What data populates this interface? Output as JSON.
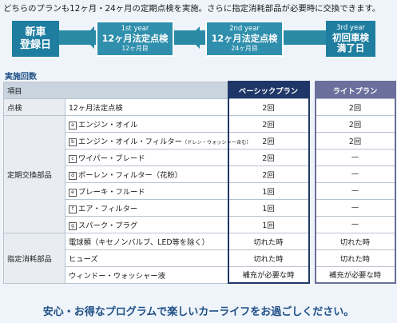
{
  "intro": "どちらのプランも12ヶ月・24ヶ月の定期点検を実施。さらに指定消耗部品が必要時に交換できます。",
  "timeline": {
    "start": {
      "line1": "新車",
      "line2": "登録日"
    },
    "mid1": {
      "year": "1st year",
      "title": "12ヶ月法定点検",
      "sub": "12ヶ月目"
    },
    "mid2": {
      "year": "2nd year",
      "title": "12ヶ月法定点検",
      "sub": "24ヶ月目"
    },
    "end": {
      "year": "3rd year",
      "line1": "初回車検",
      "line2": "満了日"
    }
  },
  "section_title": "実施回数",
  "table": {
    "headers": {
      "item": "項目",
      "basic": "ベーシックプラン",
      "light": "ライトプラン"
    },
    "inspection": {
      "category": "点検",
      "item": "12ヶ月法定点検",
      "basic": "2回",
      "light": "2回"
    },
    "replacement": {
      "category": "定期交換部品",
      "rows": [
        {
          "mark": "a",
          "item": "エンジン・オイル",
          "note": "",
          "basic": "2回",
          "light": "2回"
        },
        {
          "mark": "b",
          "item": "エンジン・オイル・フィルター",
          "note": "（ドレン・ウォッシャー含む）",
          "basic": "2回",
          "light": "2回"
        },
        {
          "mark": "c",
          "item": "ワイパー・ブレード",
          "note": "",
          "basic": "2回",
          "light": "—"
        },
        {
          "mark": "d",
          "item": "ポーレン・フィルター（花粉）",
          "note": "",
          "basic": "2回",
          "light": "—"
        },
        {
          "mark": "e",
          "item": "ブレーキ・フルード",
          "note": "",
          "basic": "1回",
          "light": "—"
        },
        {
          "mark": "f",
          "item": "エア・フィルター",
          "note": "",
          "basic": "1回",
          "light": "—"
        },
        {
          "mark": "g",
          "item": "スパーク・プラグ",
          "note": "",
          "basic": "1回",
          "light": "—"
        }
      ]
    },
    "consumables": {
      "category": "指定消耗部品",
      "rows": [
        {
          "item": "電球類（キセノンバルブ、LED等を除く）",
          "basic": "切れた時",
          "light": "切れた時"
        },
        {
          "item": "ヒューズ",
          "basic": "切れた時",
          "light": "切れた時"
        },
        {
          "item": "ウィンドー・ウォッシャー液",
          "basic": "補充が必要な時",
          "light": "補充が必要な時"
        }
      ]
    }
  },
  "footer": "安心・お得なプログラムで楽しいカーライフをお過ごしください。",
  "colors": {
    "timeline": "#1f7ea0",
    "basic": "#1f3768",
    "light": "#6b6f9b",
    "footer": "#1f4f86"
  }
}
